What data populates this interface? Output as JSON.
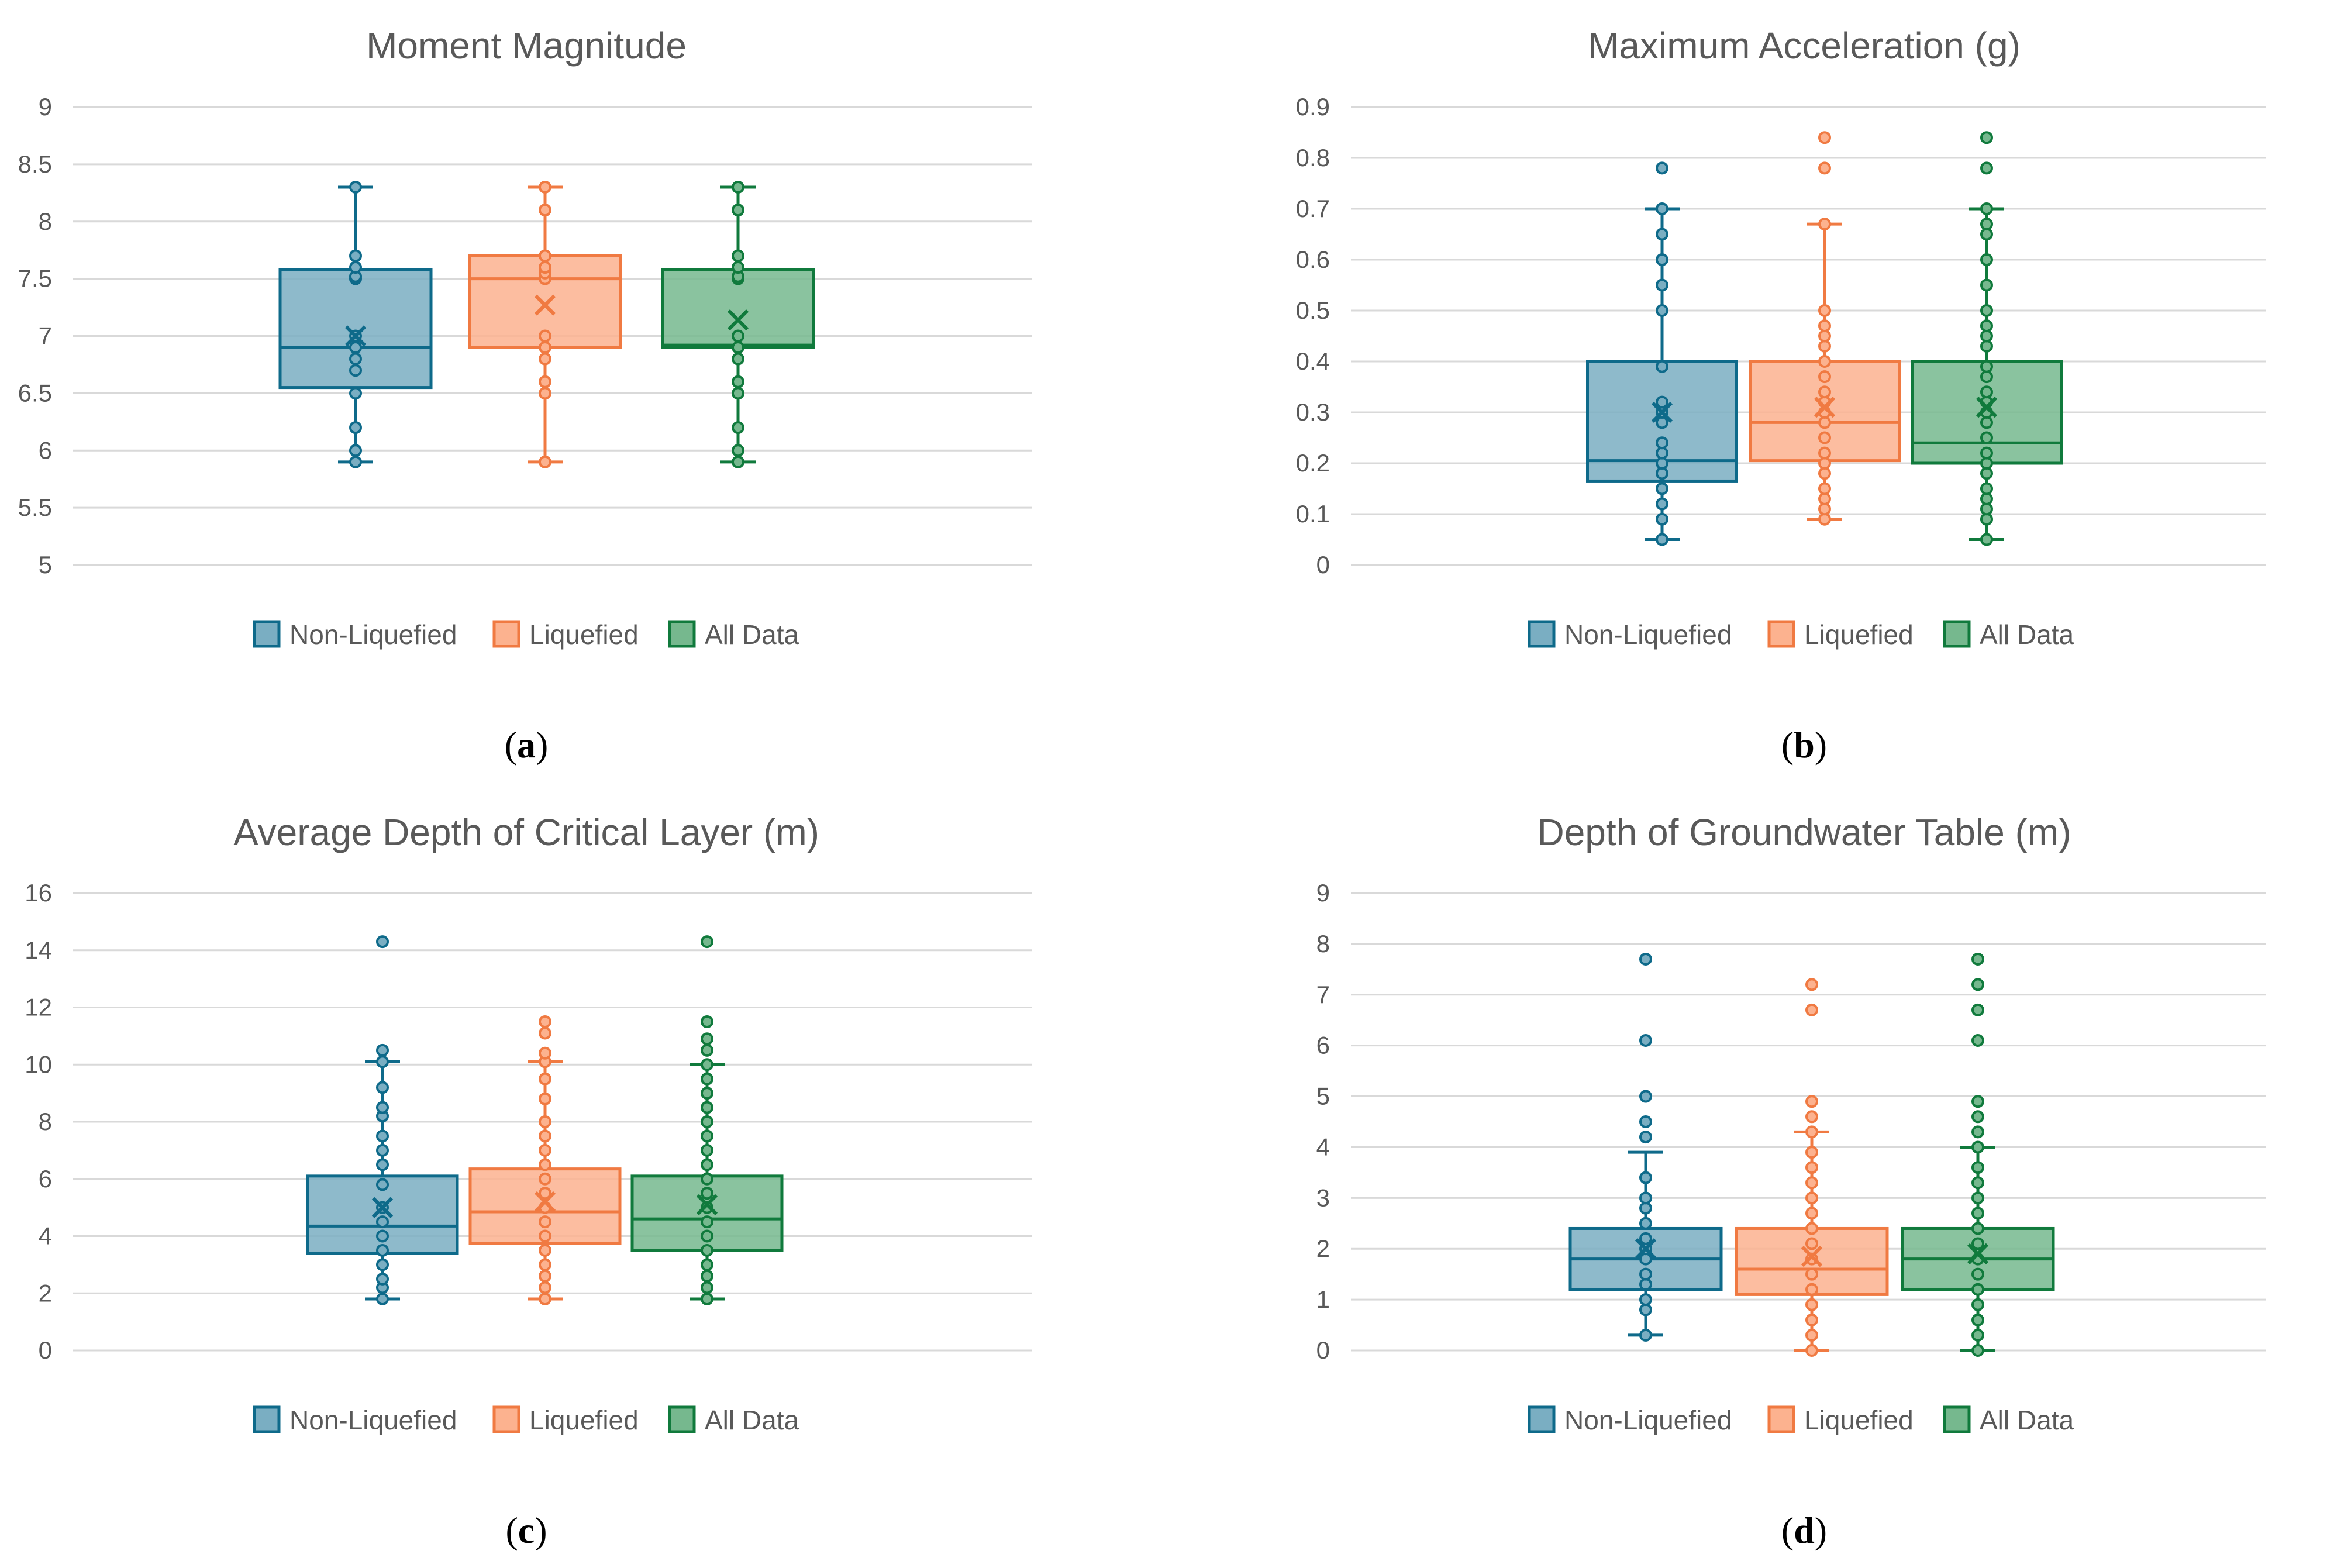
{
  "figure": {
    "legend": {
      "series": [
        {
          "name": "Non-Liquefied",
          "color": "#0E6A8A",
          "fill": "#7AAEC2"
        },
        {
          "name": "Liquefied",
          "color": "#F07A42",
          "fill": "#FCB28F"
        },
        {
          "name": "All Data",
          "color": "#107A3C",
          "fill": "#76B88E"
        }
      ]
    }
  },
  "chart_data": [
    {
      "type": "box",
      "title": "Moment Magnitude",
      "caption": {
        "open": "(",
        "letter": "a",
        "close": ")"
      },
      "ylim": [
        5,
        9
      ],
      "yticks": [
        "5",
        "5.5",
        "6",
        "6.5",
        "7",
        "7.5",
        "8",
        "8.5",
        "9"
      ],
      "ytick_values": [
        5,
        5.5,
        6,
        6.5,
        7,
        7.5,
        8,
        8.5,
        9
      ],
      "series": [
        {
          "name": "Non-Liquefied",
          "min": 5.9,
          "q1": 6.55,
          "median": 6.9,
          "q3": 7.58,
          "max": 8.3,
          "mean": 7.0,
          "points": [
            5.9,
            6.0,
            6.2,
            6.5,
            6.7,
            6.8,
            6.9,
            7.0,
            7.5,
            7.52,
            7.6,
            7.7,
            8.3
          ]
        },
        {
          "name": "Liquefied",
          "min": 5.9,
          "q1": 6.9,
          "median": 7.5,
          "q3": 7.7,
          "max": 8.3,
          "mean": 7.27,
          "points": [
            5.9,
            6.5,
            6.6,
            6.8,
            6.9,
            7.0,
            7.5,
            7.55,
            7.6,
            7.7,
            8.1,
            8.3
          ]
        },
        {
          "name": "All Data",
          "min": 5.9,
          "q1": 6.9,
          "median": 6.92,
          "q3": 7.58,
          "max": 8.3,
          "mean": 7.14,
          "points": [
            5.9,
            6.0,
            6.2,
            6.5,
            6.6,
            6.8,
            6.9,
            7.0,
            7.5,
            7.52,
            7.6,
            7.7,
            8.1,
            8.3
          ]
        }
      ]
    },
    {
      "type": "box",
      "title": "Maximum Acceleration (g)",
      "caption": {
        "open": "(",
        "letter": "b",
        "close": ")"
      },
      "ylim": [
        0,
        0.9
      ],
      "yticks": [
        "0",
        "0.1",
        "0.2",
        "0.3",
        "0.4",
        "0.5",
        "0.6",
        "0.7",
        "0.8",
        "0.9"
      ],
      "ytick_values": [
        0,
        0.1,
        0.2,
        0.3,
        0.4,
        0.5,
        0.6,
        0.7,
        0.8,
        0.9
      ],
      "series": [
        {
          "name": "Non-Liquefied",
          "min": 0.05,
          "q1": 0.165,
          "median": 0.205,
          "q3": 0.4,
          "max": 0.7,
          "mean": 0.3,
          "points": [
            0.05,
            0.09,
            0.12,
            0.15,
            0.18,
            0.2,
            0.22,
            0.24,
            0.28,
            0.3,
            0.32,
            0.39,
            0.5,
            0.55,
            0.6,
            0.65,
            0.7,
            0.78
          ]
        },
        {
          "name": "Liquefied",
          "min": 0.09,
          "q1": 0.205,
          "median": 0.28,
          "q3": 0.4,
          "max": 0.67,
          "mean": 0.31,
          "points": [
            0.09,
            0.11,
            0.13,
            0.15,
            0.18,
            0.2,
            0.22,
            0.25,
            0.28,
            0.3,
            0.32,
            0.34,
            0.37,
            0.4,
            0.43,
            0.45,
            0.47,
            0.5,
            0.67,
            0.78,
            0.84
          ]
        },
        {
          "name": "All Data",
          "min": 0.05,
          "q1": 0.2,
          "median": 0.24,
          "q3": 0.4,
          "max": 0.7,
          "mean": 0.31,
          "points": [
            0.05,
            0.09,
            0.11,
            0.13,
            0.15,
            0.18,
            0.2,
            0.22,
            0.25,
            0.28,
            0.3,
            0.32,
            0.34,
            0.37,
            0.39,
            0.43,
            0.45,
            0.47,
            0.5,
            0.55,
            0.6,
            0.65,
            0.67,
            0.7,
            0.78,
            0.84
          ]
        }
      ]
    },
    {
      "type": "box",
      "title": "Average Depth of Critical Layer (m)",
      "caption": {
        "open": "(",
        "letter": "c",
        "close": ")"
      },
      "ylim": [
        0,
        16
      ],
      "yticks": [
        "0",
        "2",
        "4",
        "6",
        "8",
        "10",
        "12",
        "14",
        "16"
      ],
      "ytick_values": [
        0,
        2,
        4,
        6,
        8,
        10,
        12,
        14,
        16
      ],
      "series": [
        {
          "name": "Non-Liquefied",
          "min": 1.8,
          "q1": 3.4,
          "median": 4.35,
          "q3": 6.1,
          "max": 10.1,
          "mean": 5.0,
          "points": [
            1.8,
            2.2,
            2.5,
            3.0,
            3.5,
            4.0,
            4.5,
            5.0,
            5.8,
            6.5,
            7.0,
            7.5,
            8.2,
            8.5,
            9.2,
            10.1,
            10.5,
            14.3
          ]
        },
        {
          "name": "Liquefied",
          "min": 1.8,
          "q1": 3.75,
          "median": 4.85,
          "q3": 6.35,
          "max": 10.1,
          "mean": 5.2,
          "points": [
            1.8,
            2.2,
            2.6,
            3.0,
            3.5,
            4.0,
            4.5,
            5.0,
            5.5,
            6.0,
            6.5,
            7.0,
            7.5,
            8.0,
            8.8,
            9.5,
            10.1,
            10.4,
            11.1,
            11.5
          ]
        },
        {
          "name": "All Data",
          "min": 1.8,
          "q1": 3.5,
          "median": 4.6,
          "q3": 6.1,
          "max": 10.0,
          "mean": 5.1,
          "points": [
            1.8,
            2.2,
            2.6,
            3.0,
            3.5,
            4.0,
            4.5,
            5.0,
            5.5,
            6.0,
            6.5,
            7.0,
            7.5,
            8.0,
            8.5,
            9.0,
            9.5,
            10.0,
            10.5,
            10.9,
            11.5,
            14.3
          ]
        }
      ]
    },
    {
      "type": "box",
      "title": "Depth of Groundwater Table (m)",
      "caption": {
        "open": "(",
        "letter": "d",
        "close": ")"
      },
      "ylim": [
        0,
        9
      ],
      "yticks": [
        "0",
        "1",
        "2",
        "3",
        "4",
        "5",
        "6",
        "7",
        "8",
        "9"
      ],
      "ytick_values": [
        0,
        1,
        2,
        3,
        4,
        5,
        6,
        7,
        8,
        9
      ],
      "series": [
        {
          "name": "Non-Liquefied",
          "min": 0.3,
          "q1": 1.2,
          "median": 1.8,
          "q3": 2.4,
          "max": 3.9,
          "mean": 2.0,
          "points": [
            0.3,
            0.8,
            1.0,
            1.3,
            1.5,
            1.8,
            2.0,
            2.2,
            2.5,
            2.8,
            3.0,
            3.4,
            4.2,
            4.5,
            5.0,
            6.1,
            7.7
          ]
        },
        {
          "name": "Liquefied",
          "min": 0.0,
          "q1": 1.1,
          "median": 1.6,
          "q3": 2.4,
          "max": 4.3,
          "mean": 1.85,
          "points": [
            0.0,
            0.3,
            0.6,
            0.9,
            1.2,
            1.5,
            1.8,
            2.1,
            2.4,
            2.7,
            3.0,
            3.3,
            3.6,
            3.9,
            4.3,
            4.6,
            4.9,
            6.7,
            7.2
          ]
        },
        {
          "name": "All Data",
          "min": 0.0,
          "q1": 1.2,
          "median": 1.8,
          "q3": 2.4,
          "max": 4.0,
          "mean": 1.9,
          "points": [
            0.0,
            0.3,
            0.6,
            0.9,
            1.2,
            1.5,
            1.8,
            2.1,
            2.4,
            2.7,
            3.0,
            3.3,
            3.6,
            4.0,
            4.3,
            4.6,
            4.9,
            6.1,
            6.7,
            7.2,
            7.7
          ]
        }
      ]
    }
  ]
}
